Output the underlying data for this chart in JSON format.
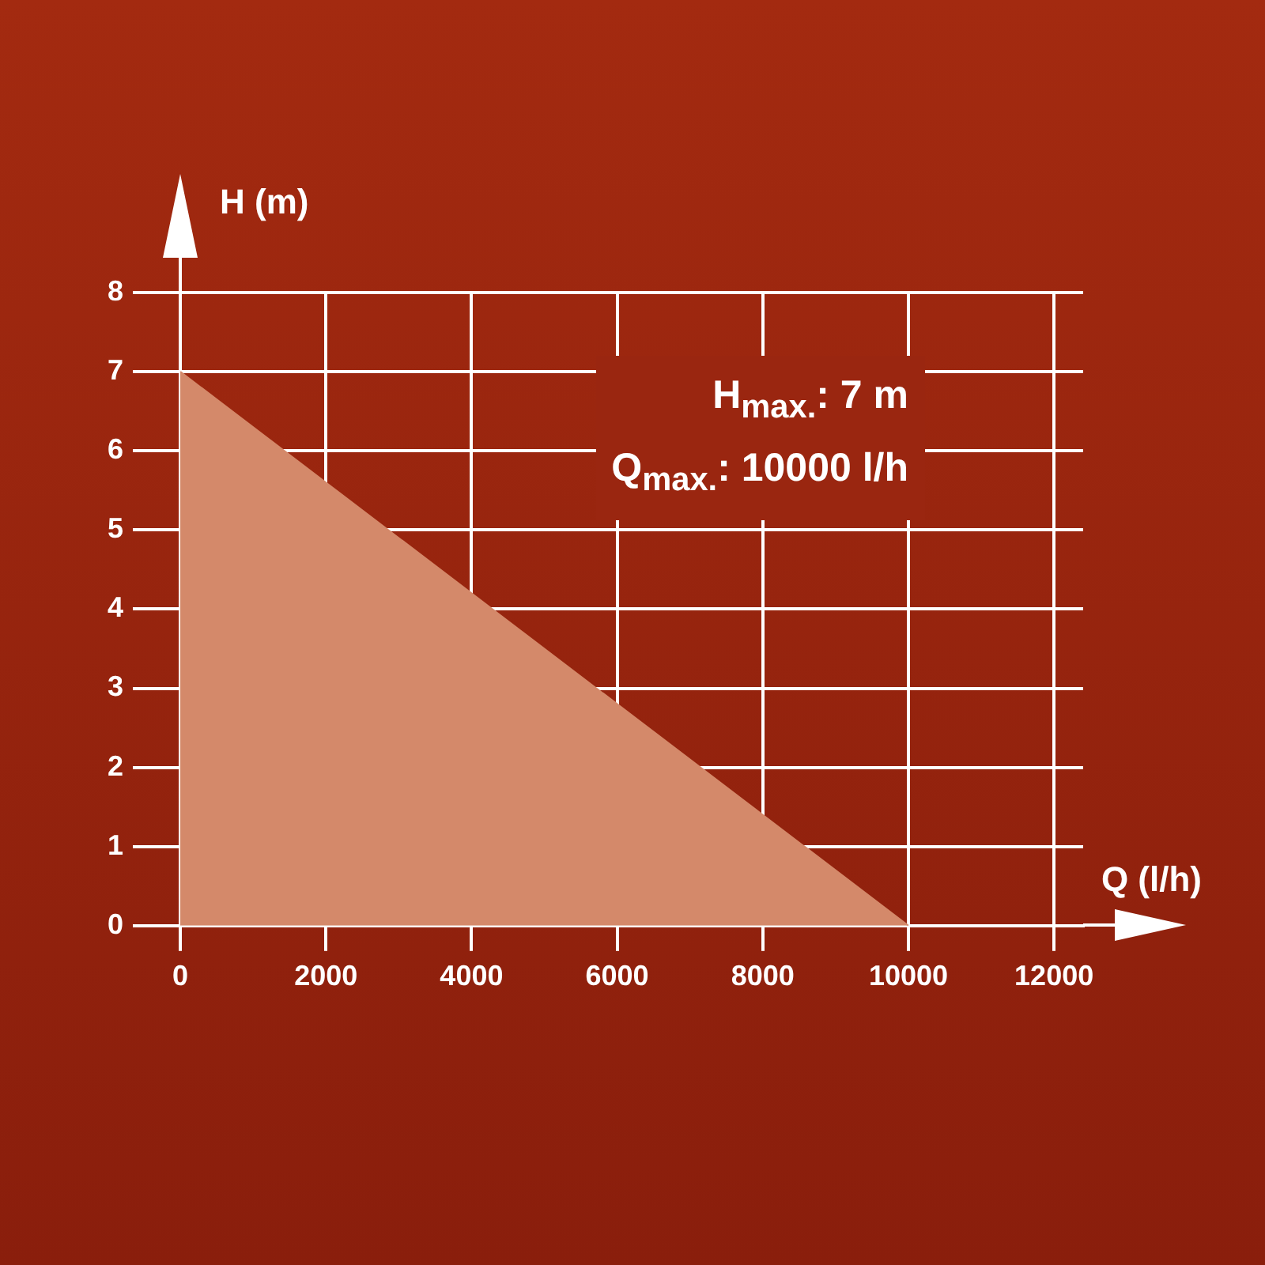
{
  "chart_data": {
    "type": "area",
    "xlabel": "Q (l/h)",
    "ylabel": "H (m)",
    "x": [
      0,
      10000
    ],
    "series": [
      {
        "color": "#d4896a",
        "values": [
          7,
          0
        ]
      }
    ],
    "xlim": [
      0,
      12400
    ],
    "xticks": [
      0,
      2000,
      4000,
      6000,
      8000,
      10000,
      12000
    ],
    "ylim": [
      0,
      8
    ],
    "yticks": [
      0,
      1,
      2,
      3,
      4,
      5,
      6,
      7,
      8
    ],
    "grid": true,
    "legend": false,
    "annotations": [
      "H$_{max.}$: 7 m",
      "Q$_{max.}$: 10000 l/h"
    ]
  }
}
